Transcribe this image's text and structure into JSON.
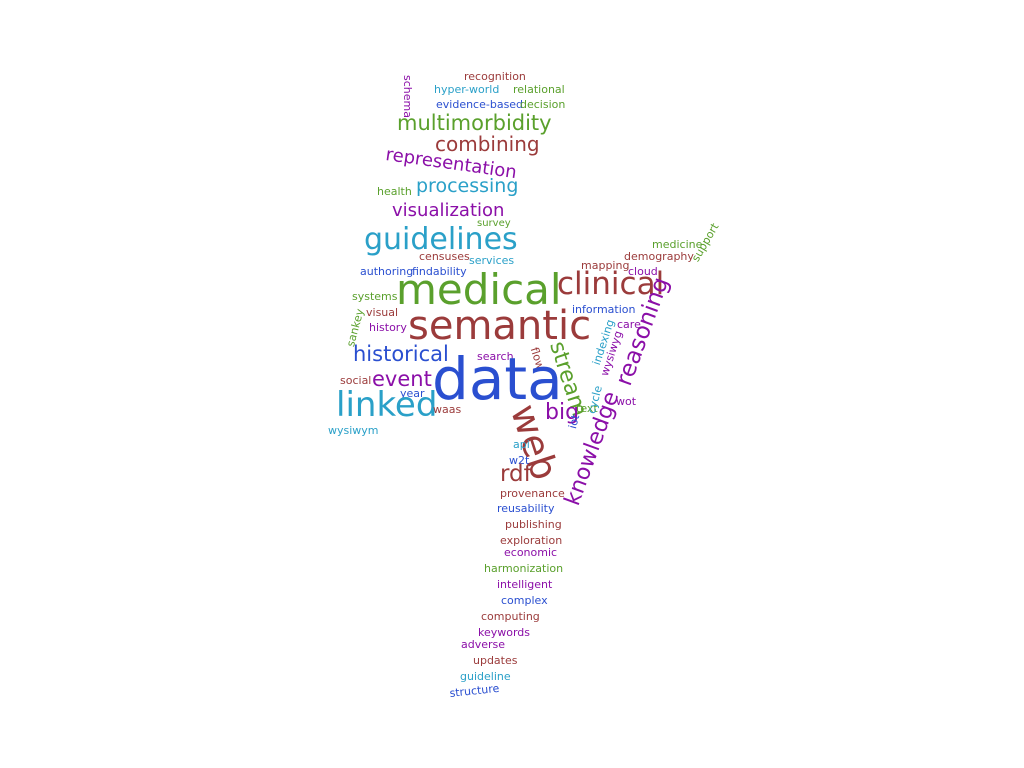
{
  "palette": {
    "red": "#9b3b3b",
    "green": "#5aa02c",
    "purple": "#8b0fa8",
    "cyan": "#2aa0c8",
    "blue": "#2a4fd0"
  },
  "words": [
    {
      "id": "recognition",
      "text": "recognition",
      "color": "red"
    },
    {
      "id": "schema",
      "text": "schema",
      "color": "purple"
    },
    {
      "id": "hyper-world",
      "text": "hyper-world",
      "color": "cyan"
    },
    {
      "id": "relational",
      "text": "relational",
      "color": "green"
    },
    {
      "id": "evidence-based",
      "text": "evidence-based",
      "color": "blue"
    },
    {
      "id": "decision",
      "text": "decision",
      "color": "green"
    },
    {
      "id": "multimorbidity",
      "text": "multimorbidity",
      "color": "green"
    },
    {
      "id": "combining",
      "text": "combining",
      "color": "red"
    },
    {
      "id": "representation",
      "text": "representation",
      "color": "purple"
    },
    {
      "id": "health",
      "text": "health",
      "color": "green"
    },
    {
      "id": "processing",
      "text": "processing",
      "color": "cyan"
    },
    {
      "id": "visualization",
      "text": "visualization",
      "color": "purple"
    },
    {
      "id": "survey",
      "text": "survey",
      "color": "green"
    },
    {
      "id": "guidelines",
      "text": "guidelines",
      "color": "cyan"
    },
    {
      "id": "medicine",
      "text": "medicine",
      "color": "green"
    },
    {
      "id": "censuses",
      "text": "censuses",
      "color": "red"
    },
    {
      "id": "services",
      "text": "services",
      "color": "cyan"
    },
    {
      "id": "mapping",
      "text": "mapping",
      "color": "red"
    },
    {
      "id": "demography",
      "text": "demography",
      "color": "red"
    },
    {
      "id": "cloud",
      "text": "cloud",
      "color": "purple"
    },
    {
      "id": "support",
      "text": "support",
      "color": "green"
    },
    {
      "id": "authoring",
      "text": "authoring",
      "color": "blue"
    },
    {
      "id": "findability",
      "text": "findability",
      "color": "blue"
    },
    {
      "id": "medical",
      "text": "medical",
      "color": "green"
    },
    {
      "id": "clinical",
      "text": "clinical",
      "color": "red"
    },
    {
      "id": "systems",
      "text": "systems",
      "color": "green"
    },
    {
      "id": "information",
      "text": "information",
      "color": "blue"
    },
    {
      "id": "sankey",
      "text": "sankey",
      "color": "green"
    },
    {
      "id": "visual",
      "text": "visual",
      "color": "red"
    },
    {
      "id": "semantic",
      "text": "semantic",
      "color": "red"
    },
    {
      "id": "care",
      "text": "care",
      "color": "purple"
    },
    {
      "id": "history",
      "text": "history",
      "color": "purple"
    },
    {
      "id": "reasoning",
      "text": "reasoning",
      "color": "purple"
    },
    {
      "id": "wysiwyg",
      "text": "wysiwyg",
      "color": "purple"
    },
    {
      "id": "indexing",
      "text": "indexing",
      "color": "cyan"
    },
    {
      "id": "historical",
      "text": "historical",
      "color": "blue"
    },
    {
      "id": "search",
      "text": "search",
      "color": "purple"
    },
    {
      "id": "flow",
      "text": "flow",
      "color": "red"
    },
    {
      "id": "stream",
      "text": "stream",
      "color": "green"
    },
    {
      "id": "social",
      "text": "social",
      "color": "red"
    },
    {
      "id": "event",
      "text": "event",
      "color": "purple"
    },
    {
      "id": "data",
      "text": "data",
      "color": "blue"
    },
    {
      "id": "year",
      "text": "year",
      "color": "blue"
    },
    {
      "id": "wot",
      "text": "wot",
      "color": "purple"
    },
    {
      "id": "linked",
      "text": "linked",
      "color": "cyan"
    },
    {
      "id": "text",
      "text": "text",
      "color": "green"
    },
    {
      "id": "waas",
      "text": "waas",
      "color": "red"
    },
    {
      "id": "big",
      "text": "big",
      "color": "purple"
    },
    {
      "id": "web",
      "text": "web",
      "color": "red"
    },
    {
      "id": "cycle",
      "text": "cycle",
      "color": "cyan"
    },
    {
      "id": "iot",
      "text": "iot",
      "color": "blue"
    },
    {
      "id": "wysiwym",
      "text": "wysiwym",
      "color": "cyan"
    },
    {
      "id": "knowledge",
      "text": "knowledge",
      "color": "purple"
    },
    {
      "id": "api",
      "text": "api",
      "color": "cyan"
    },
    {
      "id": "w2t",
      "text": "w2t",
      "color": "blue"
    },
    {
      "id": "rdf",
      "text": "rdf",
      "color": "red"
    },
    {
      "id": "provenance",
      "text": "provenance",
      "color": "red"
    },
    {
      "id": "reusability",
      "text": "reusability",
      "color": "blue"
    },
    {
      "id": "publishing",
      "text": "publishing",
      "color": "red"
    },
    {
      "id": "exploration",
      "text": "exploration",
      "color": "red"
    },
    {
      "id": "economic",
      "text": "economic",
      "color": "purple"
    },
    {
      "id": "harmonization",
      "text": "harmonization",
      "color": "green"
    },
    {
      "id": "intelligent",
      "text": "intelligent",
      "color": "purple"
    },
    {
      "id": "complex",
      "text": "complex",
      "color": "blue"
    },
    {
      "id": "computing",
      "text": "computing",
      "color": "red"
    },
    {
      "id": "keywords",
      "text": "keywords",
      "color": "purple"
    },
    {
      "id": "adverse",
      "text": "adverse",
      "color": "purple"
    },
    {
      "id": "updates",
      "text": "updates",
      "color": "red"
    },
    {
      "id": "guideline",
      "text": "guideline",
      "color": "cyan"
    },
    {
      "id": "structure",
      "text": "structure",
      "color": "blue"
    }
  ]
}
